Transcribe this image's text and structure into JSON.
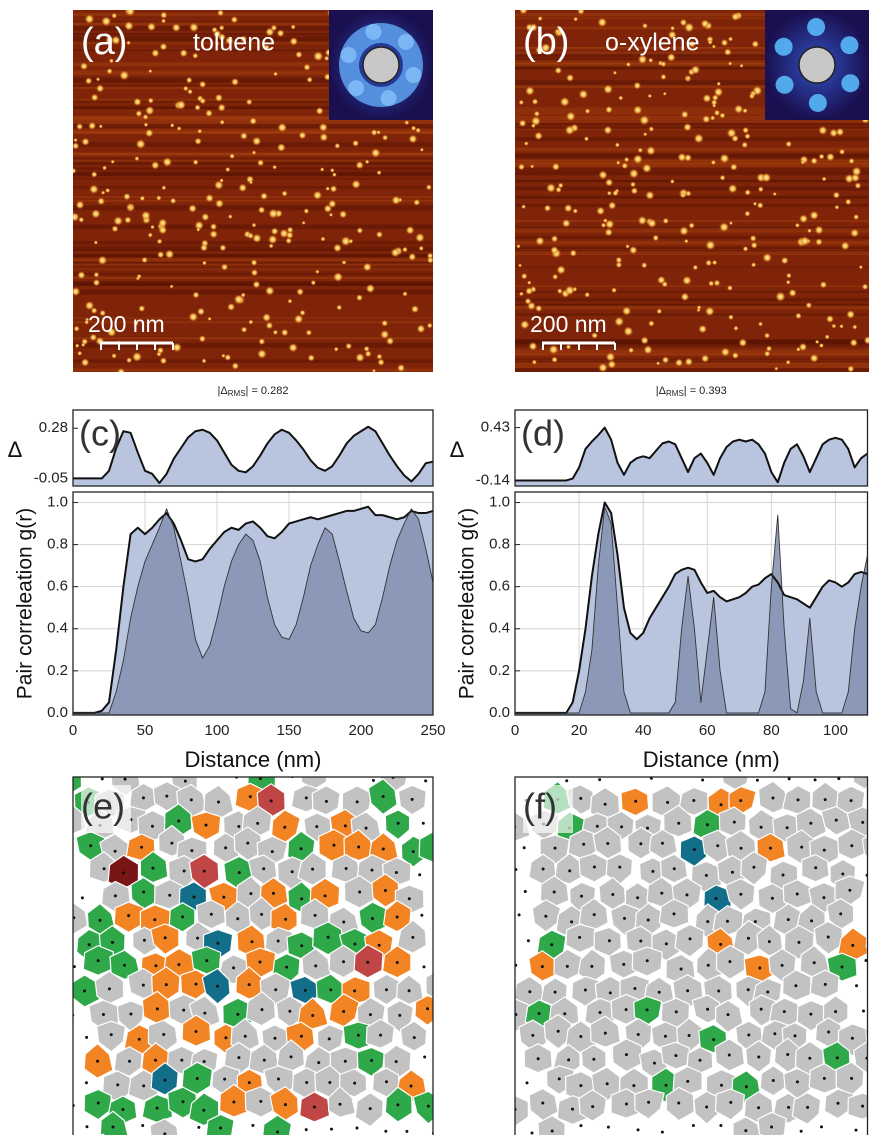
{
  "images": [
    {
      "label": "(a)",
      "caption": "toluene",
      "scale_bar": "200 nm"
    },
    {
      "label": "(b)",
      "caption": "o-xylene",
      "scale_bar": "200 nm"
    }
  ],
  "voronoi": [
    {
      "label": "(e)"
    },
    {
      "label": "(f)"
    }
  ],
  "chart_data": [
    {
      "type": "area",
      "label": "(c)",
      "ylabel": "Δ",
      "annotation": {
        "prefix": "|Δ",
        "sub": "RMS",
        "suffix": "| = 0.282"
      },
      "xlim": [
        0,
        250
      ],
      "ylim": [
        -0.1,
        0.4
      ],
      "yticks": [
        0.28,
        -0.05
      ],
      "grid": false,
      "x": [
        0,
        5,
        10,
        15,
        20,
        25,
        30,
        35,
        40,
        45,
        50,
        55,
        60,
        65,
        70,
        75,
        80,
        85,
        90,
        95,
        100,
        105,
        110,
        115,
        120,
        125,
        130,
        135,
        140,
        145,
        150,
        155,
        160,
        165,
        170,
        175,
        180,
        185,
        190,
        195,
        200,
        205,
        210,
        215,
        220,
        225,
        230,
        235,
        240,
        245,
        250
      ],
      "series": [
        {
          "color": "#b9c5de",
          "values": [
            -0.05,
            -0.05,
            -0.05,
            -0.05,
            -0.05,
            0.0,
            0.15,
            0.26,
            0.25,
            0.12,
            0.0,
            -0.02,
            -0.08,
            -0.02,
            0.08,
            0.15,
            0.22,
            0.26,
            0.27,
            0.25,
            0.2,
            0.12,
            0.04,
            0.0,
            -0.01,
            0.03,
            0.1,
            0.18,
            0.24,
            0.27,
            0.25,
            0.2,
            0.14,
            0.07,
            0.02,
            0.0,
            0.03,
            0.1,
            0.18,
            0.23,
            0.26,
            0.29,
            0.26,
            0.18,
            0.1,
            0.03,
            -0.03,
            -0.07,
            -0.02,
            0.05,
            0.06
          ]
        }
      ]
    },
    {
      "type": "area",
      "ylabel": "Pair correleation g(r)",
      "xlabel": "Distance (nm)",
      "xlim": [
        0,
        250
      ],
      "ylim": [
        -0.01,
        1.05
      ],
      "xticks": [
        0,
        50,
        100,
        150,
        200,
        250
      ],
      "yticks": [
        {
          "value": 0,
          "label": "0.0"
        },
        0.2,
        0.4,
        0.6,
        0.8,
        {
          "value": 1,
          "label": "1.0"
        }
      ],
      "grid": true,
      "x": [
        0,
        5,
        10,
        15,
        20,
        25,
        30,
        35,
        40,
        45,
        50,
        55,
        60,
        65,
        70,
        75,
        80,
        85,
        90,
        95,
        100,
        105,
        110,
        115,
        120,
        125,
        130,
        135,
        140,
        145,
        150,
        155,
        160,
        165,
        170,
        175,
        180,
        185,
        190,
        195,
        200,
        205,
        210,
        215,
        220,
        225,
        230,
        235,
        240,
        245,
        250
      ],
      "series": [
        {
          "color": "#b9c5de",
          "values": [
            0,
            0,
            0,
            0,
            0.01,
            0.05,
            0.3,
            0.6,
            0.85,
            0.88,
            0.85,
            0.88,
            0.92,
            0.95,
            0.9,
            0.82,
            0.73,
            0.72,
            0.73,
            0.78,
            0.82,
            0.86,
            0.88,
            0.87,
            0.9,
            0.91,
            0.88,
            0.84,
            0.83,
            0.86,
            0.9,
            0.91,
            0.92,
            0.93,
            0.92,
            0.93,
            0.94,
            0.95,
            0.96,
            0.96,
            0.97,
            0.98,
            0.94,
            0.94,
            0.93,
            0.92,
            0.93,
            0.96,
            0.95,
            0.95,
            0.96
          ]
        },
        {
          "color": "#8492b2",
          "values": [
            0,
            0,
            0,
            0,
            0,
            0,
            0.1,
            0.25,
            0.45,
            0.6,
            0.72,
            0.8,
            0.88,
            0.97,
            0.88,
            0.72,
            0.55,
            0.35,
            0.26,
            0.32,
            0.45,
            0.6,
            0.72,
            0.8,
            0.85,
            0.82,
            0.72,
            0.55,
            0.42,
            0.36,
            0.35,
            0.42,
            0.55,
            0.7,
            0.8,
            0.88,
            0.85,
            0.72,
            0.58,
            0.45,
            0.39,
            0.38,
            0.42,
            0.55,
            0.7,
            0.82,
            0.9,
            0.97,
            0.92,
            0.78,
            0.62
          ]
        }
      ]
    },
    {
      "type": "area",
      "label": "(d)",
      "ylabel": "Δ",
      "annotation": {
        "prefix": "|Δ",
        "sub": "RMS",
        "suffix": "| = 0.393"
      },
      "xlim": [
        0,
        110
      ],
      "ylim": [
        -0.2,
        0.62
      ],
      "yticks": [
        0.43,
        -0.14
      ],
      "grid": true,
      "x": [
        0,
        2,
        4,
        6,
        8,
        10,
        12,
        14,
        16,
        18,
        20,
        22,
        24,
        26,
        28,
        30,
        32,
        34,
        36,
        38,
        40,
        42,
        44,
        46,
        48,
        50,
        52,
        54,
        56,
        58,
        60,
        62,
        64,
        66,
        68,
        70,
        72,
        74,
        76,
        78,
        80,
        82,
        84,
        86,
        88,
        90,
        92,
        94,
        96,
        98,
        100,
        102,
        104,
        106,
        108,
        110
      ],
      "series": [
        {
          "color": "#b9c5de",
          "values": [
            -0.14,
            -0.14,
            -0.14,
            -0.14,
            -0.14,
            -0.14,
            -0.14,
            -0.14,
            -0.14,
            -0.12,
            0.0,
            0.2,
            0.28,
            0.35,
            0.43,
            0.3,
            0.05,
            -0.08,
            0.05,
            0.1,
            0.12,
            0.1,
            0.18,
            0.26,
            0.28,
            0.25,
            0.1,
            -0.05,
            0.1,
            0.15,
            0.05,
            -0.08,
            0.1,
            0.22,
            0.28,
            0.3,
            0.28,
            0.3,
            0.25,
            0.15,
            -0.05,
            -0.16,
            0.05,
            0.2,
            0.25,
            0.12,
            -0.05,
            0.1,
            0.25,
            0.3,
            0.32,
            0.3,
            0.2,
            0.0,
            0.1,
            0.15
          ]
        }
      ]
    },
    {
      "type": "area",
      "ylabel": "Pair correleation g(r)",
      "xlabel": "Distance (nm)",
      "xlim": [
        0,
        110
      ],
      "ylim": [
        -0.01,
        1.05
      ],
      "xticks": [
        0,
        20,
        40,
        60,
        80,
        100
      ],
      "yticks": [
        {
          "value": 0,
          "label": "0.0"
        },
        0.2,
        0.4,
        0.6,
        0.8,
        {
          "value": 1,
          "label": "1.0"
        }
      ],
      "grid": true,
      "x": [
        0,
        2,
        4,
        6,
        8,
        10,
        12,
        14,
        16,
        18,
        20,
        22,
        24,
        26,
        28,
        30,
        32,
        34,
        36,
        38,
        40,
        42,
        44,
        46,
        48,
        50,
        52,
        54,
        56,
        58,
        60,
        62,
        64,
        66,
        68,
        70,
        72,
        74,
        76,
        78,
        80,
        82,
        84,
        86,
        88,
        90,
        92,
        94,
        96,
        98,
        100,
        102,
        104,
        106,
        108,
        110
      ],
      "series": [
        {
          "color": "#b9c5de",
          "values": [
            0,
            0,
            0,
            0,
            0,
            0,
            0,
            0,
            0,
            0.05,
            0.2,
            0.4,
            0.65,
            0.85,
            1.0,
            0.95,
            0.75,
            0.5,
            0.38,
            0.35,
            0.38,
            0.45,
            0.5,
            0.55,
            0.6,
            0.66,
            0.68,
            0.69,
            0.68,
            0.62,
            0.57,
            0.58,
            0.55,
            0.53,
            0.54,
            0.55,
            0.57,
            0.6,
            0.61,
            0.64,
            0.66,
            0.62,
            0.56,
            0.55,
            0.54,
            0.52,
            0.5,
            0.55,
            0.6,
            0.63,
            0.62,
            0.6,
            0.62,
            0.66,
            0.67,
            0.66
          ]
        },
        {
          "color": "#8492b2",
          "values": [
            0,
            0,
            0,
            0,
            0,
            0,
            0,
            0,
            0,
            0,
            0,
            0.1,
            0.3,
            0.7,
            0.98,
            0.9,
            0.5,
            0.1,
            0,
            0,
            0,
            0,
            0,
            0,
            0,
            0.05,
            0.4,
            0.65,
            0.4,
            0.05,
            0.3,
            0.55,
            0.2,
            0,
            0,
            0,
            0,
            0,
            0,
            0.1,
            0.6,
            0.94,
            0.4,
            0.02,
            0,
            0.15,
            0.45,
            0.1,
            0,
            0,
            0,
            0,
            0.1,
            0.4,
            0.6,
            0.75
          ]
        }
      ]
    }
  ]
}
